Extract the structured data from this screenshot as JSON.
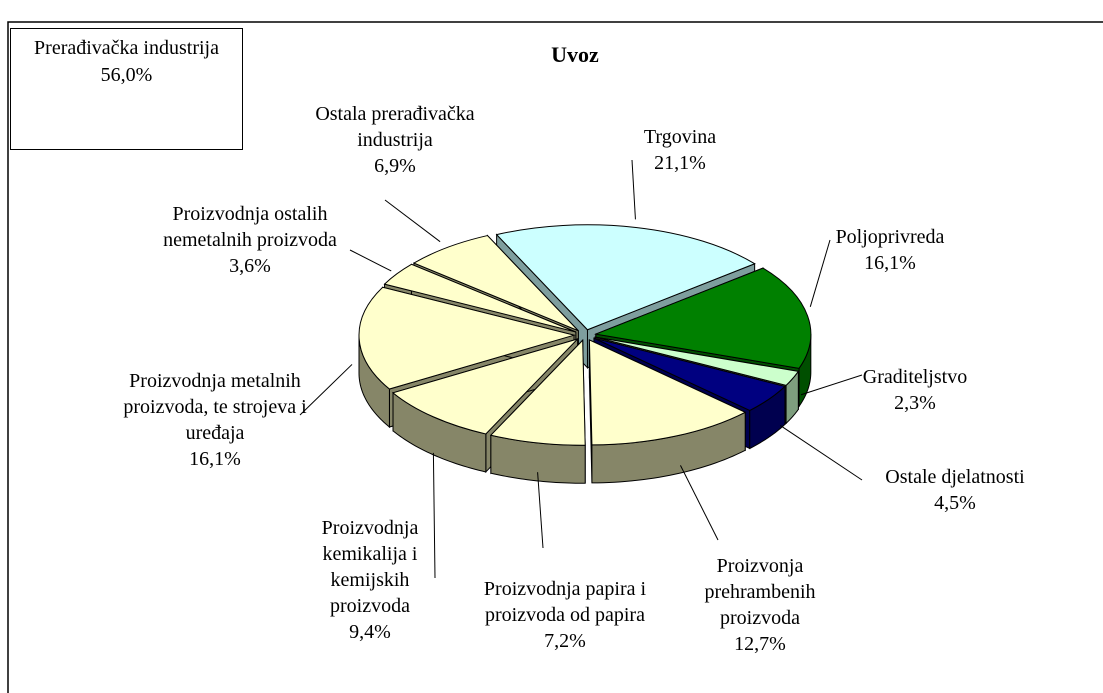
{
  "chart_data": {
    "type": "pie3d",
    "title": "Uvoz",
    "box": {
      "label": "Prerađivačka industrija",
      "value_label": "56,0%"
    },
    "categories": [
      "Trgovina",
      "Poljoprivreda",
      "Graditeljstvo",
      "Ostale djelatnosti",
      "Proizvonja prehrambenih proizvoda",
      "Proizvodnja papira i proizvoda od papira",
      "Proizvodnja kemikalija i kemijskih proizvoda",
      "Proizvodnja metalnih proizvoda, te strojeva i uređaja",
      "Proizvodnja ostalih nemetalnih proizvoda",
      "Ostala prerađivačka industrija"
    ],
    "values": [
      21.1,
      16.1,
      2.3,
      4.5,
      12.7,
      7.2,
      9.4,
      16.1,
      3.6,
      6.9
    ],
    "value_labels": [
      "21,1%",
      "16,1%",
      "2,3%",
      "4,5%",
      "12,7%",
      "7,2%",
      "9,4%",
      "16,1%",
      "3,6%",
      "6,9%"
    ],
    "colors": [
      "#ccffff",
      "#008000",
      "#ccffcc",
      "#000080",
      "#ffffcc",
      "#ffffcc",
      "#ffffcc",
      "#ffffcc",
      "#ffffcc",
      "#ffffcc"
    ]
  }
}
